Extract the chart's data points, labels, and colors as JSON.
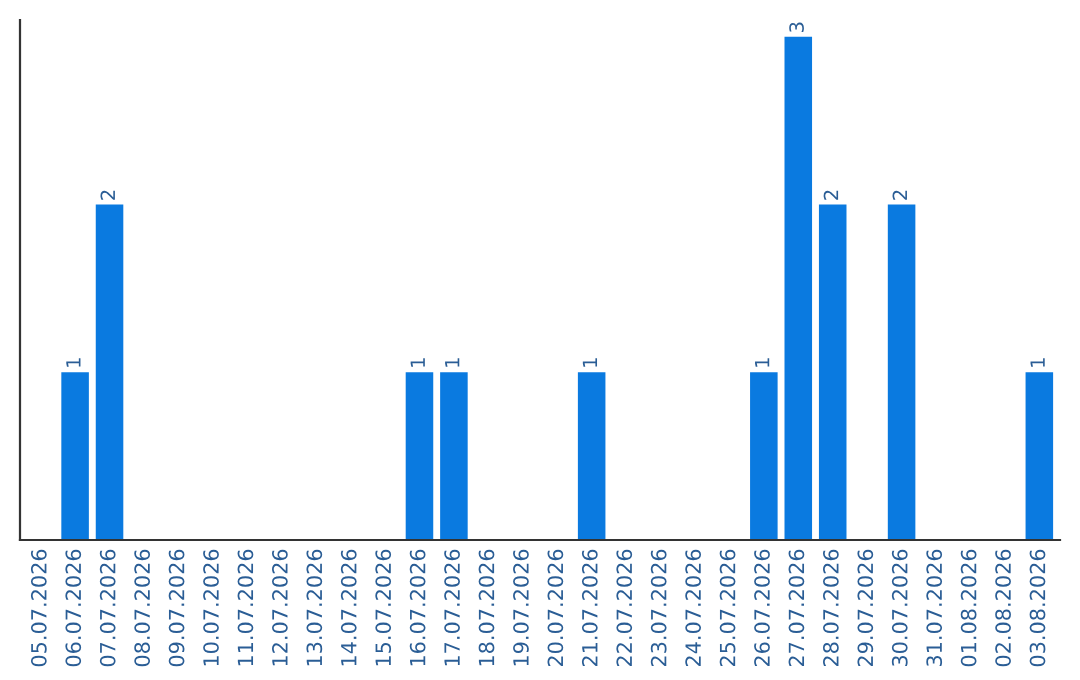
{
  "chart_data": {
    "type": "bar",
    "categories": [
      "05.07.2026",
      "06.07.2026",
      "07.07.2026",
      "08.07.2026",
      "09.07.2026",
      "10.07.2026",
      "11.07.2026",
      "12.07.2026",
      "13.07.2026",
      "14.07.2026",
      "15.07.2026",
      "16.07.2026",
      "17.07.2026",
      "18.07.2026",
      "19.07.2026",
      "20.07.2026",
      "21.07.2026",
      "22.07.2026",
      "23.07.2026",
      "24.07.2026",
      "25.07.2026",
      "26.07.2026",
      "27.07.2026",
      "28.07.2026",
      "29.07.2026",
      "30.07.2026",
      "31.07.2026",
      "01.08.2026",
      "02.08.2026",
      "03.08.2026"
    ],
    "values": [
      0,
      1,
      2,
      0,
      0,
      0,
      0,
      0,
      0,
      0,
      0,
      1,
      1,
      0,
      0,
      0,
      1,
      0,
      0,
      0,
      0,
      1,
      3,
      2,
      0,
      2,
      0,
      0,
      0,
      1
    ],
    "color": "#0a7ae0",
    "ylim": [
      0,
      3.1
    ],
    "value_labels": [
      null,
      "1",
      "2",
      null,
      null,
      null,
      null,
      null,
      null,
      null,
      null,
      "1",
      "1",
      null,
      null,
      null,
      "1",
      null,
      null,
      null,
      null,
      "1",
      "3",
      "2",
      null,
      "2",
      null,
      null,
      null,
      "1"
    ],
    "tick_labels": "x",
    "grid": false
  }
}
